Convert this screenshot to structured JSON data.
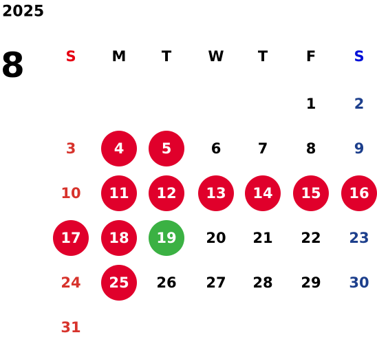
{
  "year": "2025",
  "month": "8",
  "weekdays": [
    "S",
    "M",
    "T",
    "W",
    "T",
    "F",
    "S"
  ],
  "weeks": [
    [
      null,
      null,
      null,
      null,
      null,
      {
        "day": 1
      },
      {
        "day": 2
      }
    ],
    [
      {
        "day": 3
      },
      {
        "day": 4,
        "circle": "#e0002b"
      },
      {
        "day": 5,
        "circle": "#e0002b"
      },
      {
        "day": 6
      },
      {
        "day": 7
      },
      {
        "day": 8
      },
      {
        "day": 9
      }
    ],
    [
      {
        "day": 10
      },
      {
        "day": 11,
        "circle": "#e0002b"
      },
      {
        "day": 12,
        "circle": "#e0002b"
      },
      {
        "day": 13,
        "circle": "#e0002b"
      },
      {
        "day": 14,
        "circle": "#e0002b"
      },
      {
        "day": 15,
        "circle": "#e0002b"
      },
      {
        "day": 16,
        "circle": "#e0002b"
      }
    ],
    [
      {
        "day": 17,
        "circle": "#e0002b"
      },
      {
        "day": 18,
        "circle": "#e0002b"
      },
      {
        "day": 19,
        "circle": "#3bb143"
      },
      {
        "day": 20
      },
      {
        "day": 21
      },
      {
        "day": 22
      },
      {
        "day": 23
      }
    ],
    [
      {
        "day": 24
      },
      {
        "day": 25,
        "circle": "#e0002b"
      },
      {
        "day": 26
      },
      {
        "day": 27
      },
      {
        "day": 28
      },
      {
        "day": 29
      },
      {
        "day": 30
      }
    ],
    [
      {
        "day": 31
      },
      null,
      null,
      null,
      null,
      null,
      null
    ]
  ]
}
